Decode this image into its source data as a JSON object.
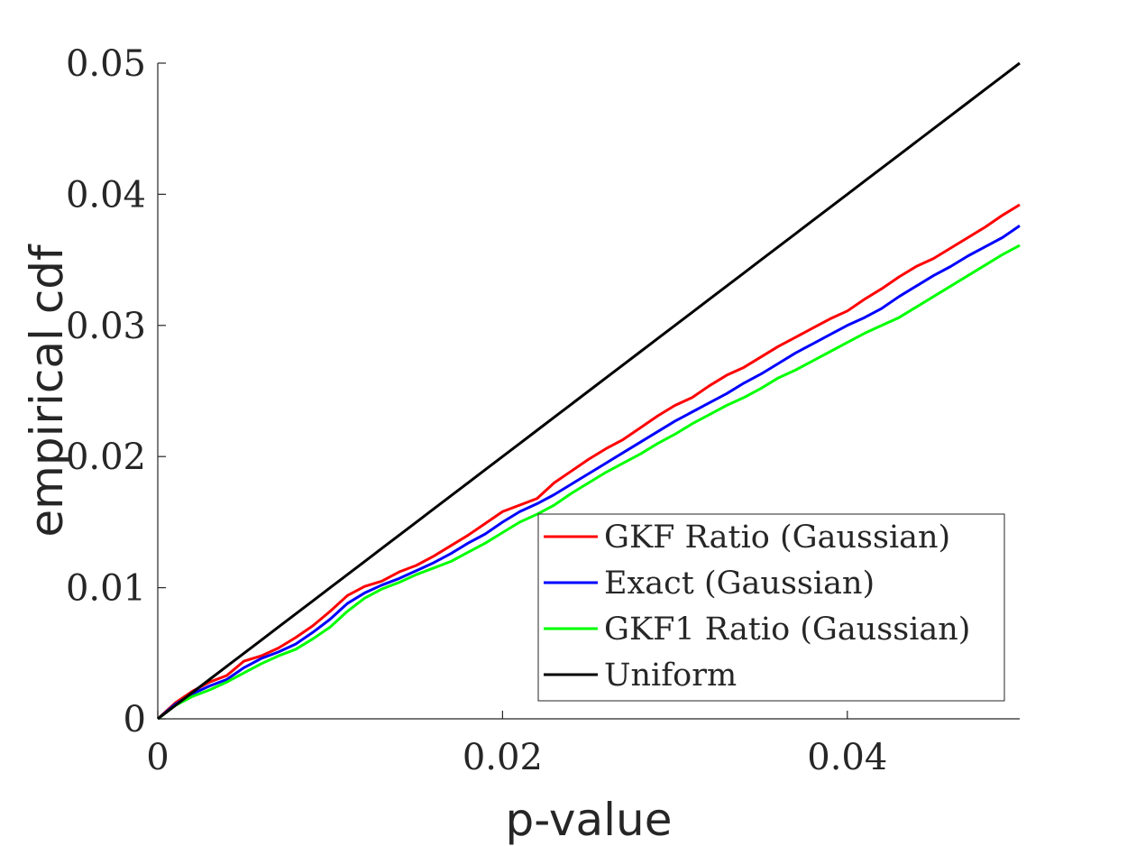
{
  "chart_data": {
    "type": "line",
    "title": "",
    "xlabel": "p-value",
    "ylabel": "empirical cdf",
    "xlim": [
      0,
      0.05
    ],
    "ylim": [
      0,
      0.05
    ],
    "x_ticks": [
      0,
      0.02,
      0.04
    ],
    "x_tick_labels": [
      "0",
      "0.02",
      "0.04"
    ],
    "y_ticks": [
      0,
      0.01,
      0.02,
      0.03,
      0.04,
      0.05
    ],
    "y_tick_labels": [
      "0",
      "0.01",
      "0.02",
      "0.03",
      "0.04",
      "0.05"
    ],
    "grid": false,
    "legend_position": "bottom-right",
    "x": [
      0,
      0.001,
      0.002,
      0.003,
      0.004,
      0.005,
      0.006,
      0.007,
      0.008,
      0.009,
      0.01,
      0.011,
      0.012,
      0.013,
      0.014,
      0.015,
      0.016,
      0.017,
      0.018,
      0.019,
      0.02,
      0.021,
      0.022,
      0.023,
      0.024,
      0.025,
      0.026,
      0.027,
      0.028,
      0.029,
      0.03,
      0.031,
      0.032,
      0.033,
      0.034,
      0.035,
      0.036,
      0.037,
      0.038,
      0.039,
      0.04,
      0.041,
      0.042,
      0.043,
      0.044,
      0.045,
      0.046,
      0.047,
      0.048,
      0.049,
      0.05
    ],
    "series": [
      {
        "name": "GKF Ratio (Gaussian)",
        "color": "#ff0000",
        "values": [
          0,
          0.0012,
          0.0021,
          0.0028,
          0.0033,
          0.0044,
          0.0048,
          0.0054,
          0.0062,
          0.0071,
          0.0082,
          0.0094,
          0.0101,
          0.0105,
          0.0112,
          0.0117,
          0.0124,
          0.0132,
          0.014,
          0.0149,
          0.0158,
          0.0163,
          0.0168,
          0.018,
          0.0189,
          0.0198,
          0.0206,
          0.0213,
          0.0222,
          0.0231,
          0.0239,
          0.0245,
          0.0254,
          0.0262,
          0.0268,
          0.0276,
          0.0284,
          0.0291,
          0.0298,
          0.0305,
          0.0311,
          0.032,
          0.0328,
          0.0337,
          0.0345,
          0.0351,
          0.0359,
          0.0367,
          0.0375,
          0.0384,
          0.0392
        ]
      },
      {
        "name": "Exact (Gaussian)",
        "color": "#0000ff",
        "values": [
          0,
          0.0011,
          0.0019,
          0.0025,
          0.003,
          0.0039,
          0.0046,
          0.0051,
          0.0057,
          0.0066,
          0.0076,
          0.0088,
          0.0096,
          0.0102,
          0.0107,
          0.0113,
          0.0119,
          0.0126,
          0.0134,
          0.0141,
          0.015,
          0.0158,
          0.0164,
          0.0171,
          0.0179,
          0.0187,
          0.0195,
          0.0203,
          0.0211,
          0.0219,
          0.0227,
          0.0234,
          0.0241,
          0.0248,
          0.0256,
          0.0263,
          0.0271,
          0.0279,
          0.0286,
          0.0293,
          0.03,
          0.0306,
          0.0313,
          0.0322,
          0.033,
          0.0338,
          0.0345,
          0.0353,
          0.036,
          0.0367,
          0.0376
        ]
      },
      {
        "name": "GKF1 Ratio (Gaussian)",
        "color": "#00ff00",
        "values": [
          0,
          0.001,
          0.0017,
          0.0022,
          0.0028,
          0.0035,
          0.0042,
          0.0048,
          0.0053,
          0.0061,
          0.007,
          0.0082,
          0.0092,
          0.0099,
          0.0104,
          0.011,
          0.0115,
          0.012,
          0.0127,
          0.0134,
          0.0142,
          0.015,
          0.0156,
          0.0163,
          0.0172,
          0.018,
          0.0188,
          0.0195,
          0.0202,
          0.021,
          0.0217,
          0.0225,
          0.0232,
          0.0239,
          0.0245,
          0.0252,
          0.026,
          0.0266,
          0.0273,
          0.028,
          0.0287,
          0.0294,
          0.03,
          0.0306,
          0.0314,
          0.0322,
          0.033,
          0.0338,
          0.0346,
          0.0354,
          0.0361
        ]
      },
      {
        "name": "Uniform",
        "color": "#000000",
        "values": [
          0,
          0.001,
          0.002,
          0.003,
          0.004,
          0.005,
          0.006,
          0.007,
          0.008,
          0.009,
          0.01,
          0.011,
          0.012,
          0.013,
          0.014,
          0.015,
          0.016,
          0.017,
          0.018,
          0.019,
          0.02,
          0.021,
          0.022,
          0.023,
          0.024,
          0.025,
          0.026,
          0.027,
          0.028,
          0.029,
          0.03,
          0.031,
          0.032,
          0.033,
          0.034,
          0.035,
          0.036,
          0.037,
          0.038,
          0.039,
          0.04,
          0.041,
          0.042,
          0.043,
          0.044,
          0.045,
          0.046,
          0.047,
          0.048,
          0.049,
          0.05
        ]
      }
    ]
  }
}
